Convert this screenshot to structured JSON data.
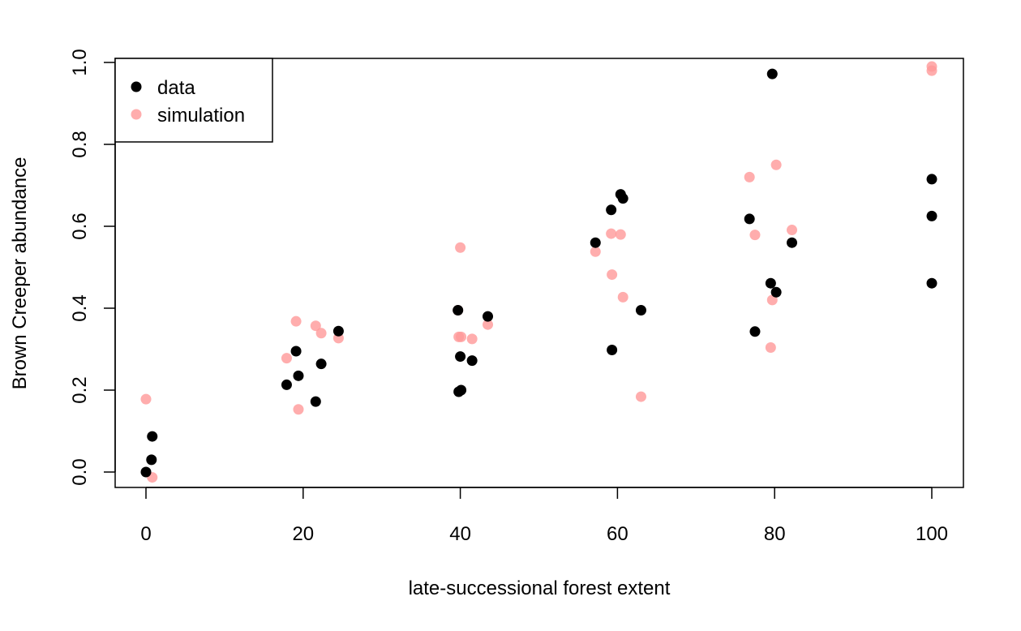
{
  "chart_data": {
    "type": "scatter",
    "title": "",
    "xlabel": "late-successional forest extent",
    "ylabel": "Brown Creeper abundance",
    "xlim": [
      0,
      100
    ],
    "ylim": [
      0,
      1
    ],
    "x_ticks": [
      0,
      20,
      40,
      60,
      80,
      100
    ],
    "y_ticks": [
      0.0,
      0.2,
      0.4,
      0.6,
      0.8,
      1.0
    ],
    "x_tick_labels": [
      "0",
      "20",
      "40",
      "60",
      "80",
      "100"
    ],
    "y_tick_labels": [
      "0.0",
      "0.2",
      "0.4",
      "0.6",
      "0.8",
      "1.0"
    ],
    "grid": false,
    "legend": {
      "position": "top-left",
      "entries": [
        {
          "name": "data",
          "color": "#000000"
        },
        {
          "name": "simulation",
          "color": "#ff9999"
        }
      ]
    },
    "series": [
      {
        "name": "data",
        "color": "#000000",
        "opacity": 1,
        "points": [
          [
            0,
            0.0
          ],
          [
            0.7,
            0.03
          ],
          [
            0.8,
            0.087
          ],
          [
            17.9,
            0.213
          ],
          [
            19.1,
            0.295
          ],
          [
            19.4,
            0.235
          ],
          [
            21.6,
            0.172
          ],
          [
            22.3,
            0.264
          ],
          [
            24.5,
            0.344
          ],
          [
            39.7,
            0.395
          ],
          [
            39.8,
            0.196
          ],
          [
            40.0,
            0.282
          ],
          [
            40.1,
            0.2
          ],
          [
            41.5,
            0.272
          ],
          [
            43.5,
            0.38
          ],
          [
            57.2,
            0.56
          ],
          [
            59.2,
            0.64
          ],
          [
            59.3,
            0.298
          ],
          [
            60.4,
            0.678
          ],
          [
            60.7,
            0.668
          ],
          [
            63.0,
            0.395
          ],
          [
            76.8,
            0.618
          ],
          [
            77.5,
            0.343
          ],
          [
            79.5,
            0.461
          ],
          [
            79.7,
            0.972
          ],
          [
            80.2,
            0.439
          ],
          [
            82.2,
            0.56
          ],
          [
            100,
            0.715
          ],
          [
            100,
            0.625
          ],
          [
            100,
            0.461
          ]
        ]
      },
      {
        "name": "simulation",
        "color": "#ff9999",
        "opacity": 0.8,
        "points": [
          [
            0,
            0.178
          ],
          [
            0.8,
            -0.013
          ],
          [
            17.9,
            0.278
          ],
          [
            19.1,
            0.368
          ],
          [
            19.4,
            0.153
          ],
          [
            21.6,
            0.357
          ],
          [
            22.3,
            0.339
          ],
          [
            24.5,
            0.327
          ],
          [
            39.7,
            0.395
          ],
          [
            39.8,
            0.33
          ],
          [
            40.0,
            0.548
          ],
          [
            40.1,
            0.33
          ],
          [
            41.5,
            0.325
          ],
          [
            43.5,
            0.36
          ],
          [
            57.2,
            0.538
          ],
          [
            59.2,
            0.582
          ],
          [
            59.3,
            0.482
          ],
          [
            60.4,
            0.58
          ],
          [
            60.7,
            0.427
          ],
          [
            63.0,
            0.184
          ],
          [
            76.8,
            0.72
          ],
          [
            77.5,
            0.579
          ],
          [
            79.5,
            0.304
          ],
          [
            79.7,
            0.42
          ],
          [
            80.2,
            0.75
          ],
          [
            82.2,
            0.591
          ],
          [
            100,
            0.99
          ],
          [
            100,
            0.98
          ]
        ]
      }
    ]
  }
}
